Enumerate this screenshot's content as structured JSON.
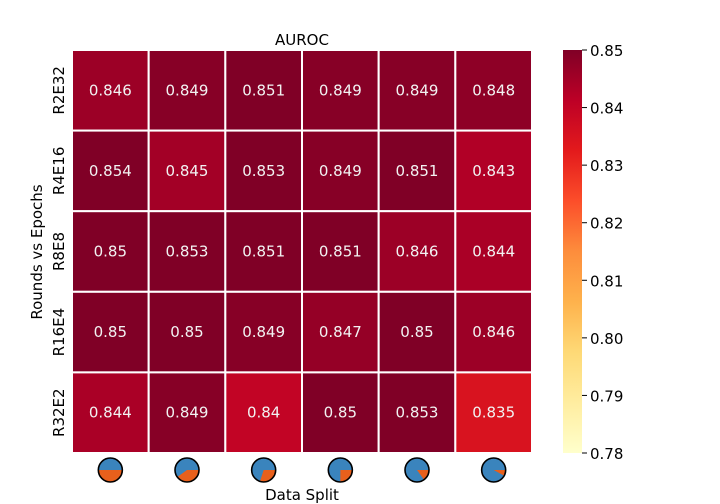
{
  "chart_data": {
    "type": "heatmap",
    "title": "AUROC",
    "xlabel": "Data Split",
    "ylabel": "Rounds vs Epochs",
    "row_labels": [
      "R2E32",
      "R4E16",
      "R8E8",
      "R16E4",
      "R32E2"
    ],
    "column_icons": [
      "pie-icon",
      "pie-icon",
      "pie-icon",
      "pie-icon",
      "pie-icon",
      "pie-icon"
    ],
    "column_split_fractions": [
      0.5,
      0.4,
      0.3,
      0.25,
      0.15,
      0.08
    ],
    "values": [
      [
        0.846,
        0.849,
        0.851,
        0.849,
        0.849,
        0.848
      ],
      [
        0.854,
        0.845,
        0.853,
        0.849,
        0.851,
        0.843
      ],
      [
        0.85,
        0.853,
        0.851,
        0.851,
        0.846,
        0.844
      ],
      [
        0.85,
        0.85,
        0.849,
        0.847,
        0.85,
        0.846
      ],
      [
        0.844,
        0.849,
        0.84,
        0.85,
        0.853,
        0.835
      ]
    ],
    "value_labels": [
      [
        "0.846",
        "0.849",
        "0.851",
        "0.849",
        "0.849",
        "0.848"
      ],
      [
        "0.854",
        "0.845",
        "0.853",
        "0.849",
        "0.851",
        "0.843"
      ],
      [
        "0.85",
        "0.853",
        "0.851",
        "0.851",
        "0.846",
        "0.844"
      ],
      [
        "0.85",
        "0.85",
        "0.849",
        "0.847",
        "0.85",
        "0.846"
      ],
      [
        "0.844",
        "0.849",
        "0.84",
        "0.85",
        "0.853",
        "0.835"
      ]
    ],
    "colorbar": {
      "min": 0.78,
      "max": 0.85,
      "ticks": [
        "0.78",
        "0.79",
        "0.80",
        "0.81",
        "0.82",
        "0.83",
        "0.84",
        "0.85"
      ],
      "colormap": "YlOrRd"
    },
    "colors": {
      "pie_main": "#3a84bd",
      "pie_slice": "#e8601c",
      "cell_border": "#ffffff"
    },
    "grid": false
  }
}
